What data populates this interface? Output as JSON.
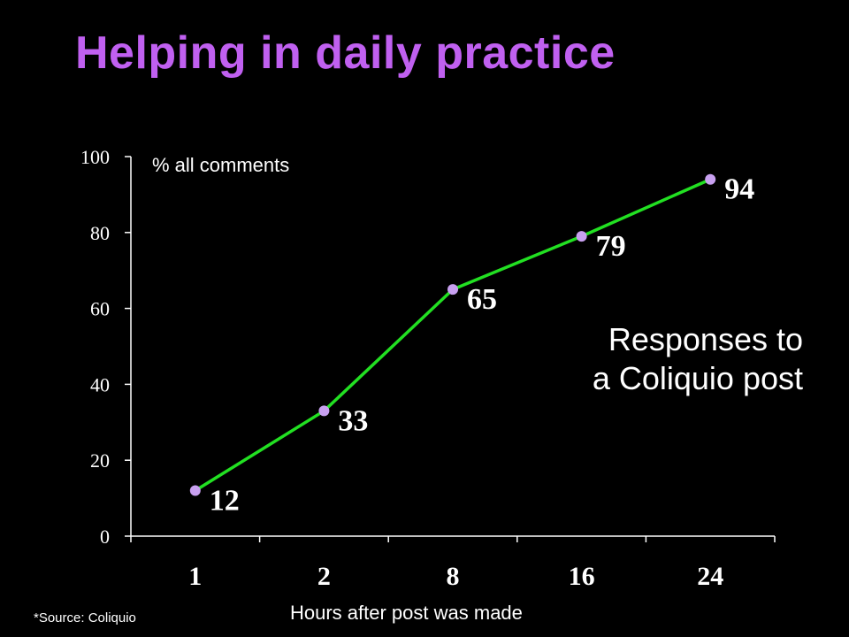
{
  "slide": {
    "title": "Helping in daily practice",
    "annotation_line1": "Responses to",
    "annotation_line2": "a Coliquio post",
    "source": "*Source: Coliquio"
  },
  "colors": {
    "background": "#000000",
    "title": "#c060f0",
    "line": "#22e022",
    "marker": "#c8a0f0",
    "axis": "#ffffff"
  },
  "chart_data": {
    "type": "line",
    "categories": [
      "1",
      "2",
      "8",
      "16",
      "24"
    ],
    "values": [
      12,
      33,
      65,
      79,
      94
    ],
    "data_labels": [
      "12",
      "33",
      "65",
      "79",
      "94"
    ],
    "ylabel": "% all comments",
    "xlabel": "Hours after post was made",
    "ylim": [
      0,
      100
    ],
    "yticks": [
      "0",
      "20",
      "40",
      "60",
      "80",
      "100"
    ],
    "grid": false,
    "legend": "none"
  }
}
